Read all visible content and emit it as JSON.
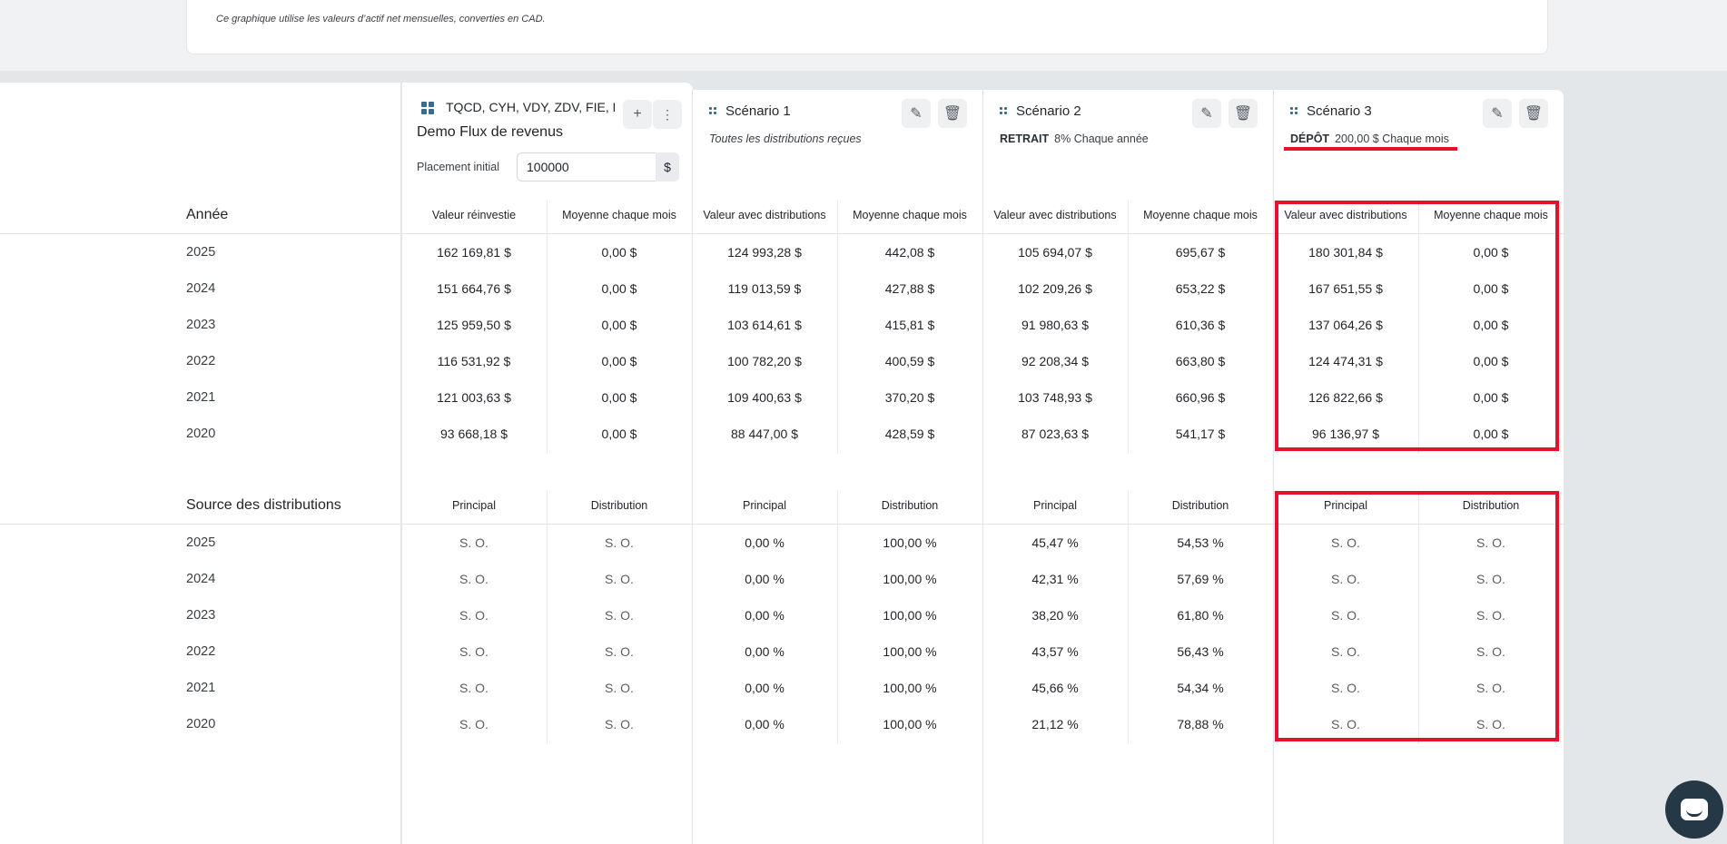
{
  "note": "Ce graphique utilise les valeurs d’actif net mensuelles, converties en CAD.",
  "first_col": {
    "title": "TQCD, CYH, VDY, ZDV, FIE, BTB, BNS, TD, ENB",
    "demo_name": "Demo Flux de revenus",
    "initial_label": "Placement initial",
    "initial_value": "100000",
    "currency": "$",
    "add_icon": "plus-icon",
    "more_icon": "more-vertical-icon"
  },
  "scenarios": [
    {
      "title": "Scénario 1",
      "kind": "",
      "detail": "Toutes les distributions reçues"
    },
    {
      "title": "Scénario 2",
      "kind": "RETRAIT",
      "detail": "8%  Chaque année"
    },
    {
      "title": "Scénario 3",
      "kind": "DÉPÔT",
      "detail": "200,00 $ Chaque mois"
    }
  ],
  "sections": {
    "year_title": "Année",
    "source_title": "Source des distributions"
  },
  "value_headers": [
    "Valeur réinvestie",
    "Moyenne chaque mois",
    "Valeur avec distributions",
    "Moyenne chaque mois",
    "Valeur avec distributions",
    "Moyenne chaque mois",
    "Valeur avec distributions",
    "Moyenne chaque mois"
  ],
  "source_headers": [
    "Principal",
    "Distribution",
    "Principal",
    "Distribution",
    "Principal",
    "Distribution",
    "Principal",
    "Distribution"
  ],
  "years": [
    "2025",
    "2024",
    "2023",
    "2022",
    "2021",
    "2020"
  ],
  "value_rows": [
    [
      "162 169,81 $",
      "0,00 $",
      "124 993,28 $",
      "442,08 $",
      "105 694,07 $",
      "695,67 $",
      "180 301,84 $",
      "0,00 $"
    ],
    [
      "151 664,76 $",
      "0,00 $",
      "119 013,59 $",
      "427,88 $",
      "102 209,26 $",
      "653,22 $",
      "167 651,55 $",
      "0,00 $"
    ],
    [
      "125 959,50 $",
      "0,00 $",
      "103 614,61 $",
      "415,81 $",
      "91 980,63 $",
      "610,36 $",
      "137 064,26 $",
      "0,00 $"
    ],
    [
      "116 531,92 $",
      "0,00 $",
      "100 782,20 $",
      "400,59 $",
      "92 208,34 $",
      "663,80 $",
      "124 474,31 $",
      "0,00 $"
    ],
    [
      "121 003,63 $",
      "0,00 $",
      "109 400,63 $",
      "370,20 $",
      "103 748,93 $",
      "660,96 $",
      "126 822,66 $",
      "0,00 $"
    ],
    [
      "93 668,18 $",
      "0,00 $",
      "88 447,00 $",
      "428,59 $",
      "87 023,63 $",
      "541,17 $",
      "96 136,97 $",
      "0,00 $"
    ]
  ],
  "source_rows": [
    [
      "S. O.",
      "S. O.",
      "0,00 %",
      "100,00 %",
      "45,47 %",
      "54,53 %",
      "S. O.",
      "S. O."
    ],
    [
      "S. O.",
      "S. O.",
      "0,00 %",
      "100,00 %",
      "42,31 %",
      "57,69 %",
      "S. O.",
      "S. O."
    ],
    [
      "S. O.",
      "S. O.",
      "0,00 %",
      "100,00 %",
      "38,20 %",
      "61,80 %",
      "S. O.",
      "S. O."
    ],
    [
      "S. O.",
      "S. O.",
      "0,00 %",
      "100,00 %",
      "43,57 %",
      "56,43 %",
      "S. O.",
      "S. O."
    ],
    [
      "S. O.",
      "S. O.",
      "0,00 %",
      "100,00 %",
      "45,66 %",
      "54,34 %",
      "S. O.",
      "S. O."
    ],
    [
      "S. O.",
      "S. O.",
      "0,00 %",
      "100,00 %",
      "21,12 %",
      "78,88 %",
      "S. O.",
      "S. O."
    ]
  ],
  "colors": {
    "highlight": "#e5132a",
    "accent": "#3d6a8a",
    "chat": "#253845"
  }
}
